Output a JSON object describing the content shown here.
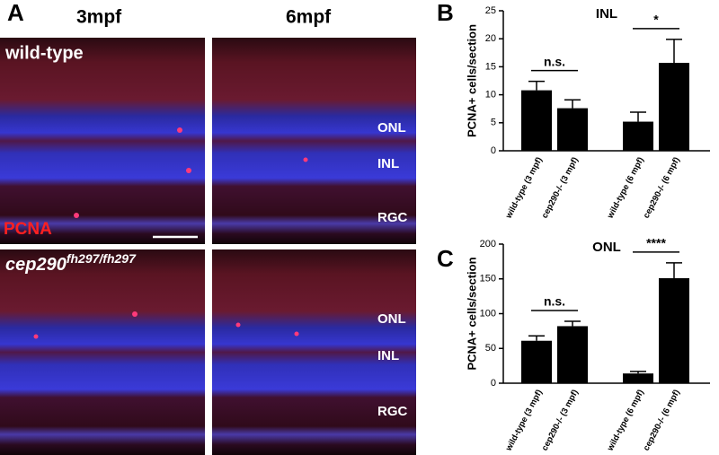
{
  "panels": {
    "a": "A",
    "b": "B",
    "c": "C"
  },
  "micrographs": {
    "columns": [
      "3mpf",
      "6mpf"
    ],
    "rows": [
      "wild-type",
      {
        "gene": "cep290",
        "allele": "fh297/fh297"
      }
    ],
    "stain": "PCNA",
    "layers": [
      "ONL",
      "INL",
      "RGC"
    ]
  },
  "chart_data": [
    {
      "type": "bar",
      "title": "INL",
      "ylabel": "PCNA+ cells/section",
      "categories": [
        "wild-type (3 mpf)",
        "cep290-/- (3 mpf)",
        "wild-type (6 mpf)",
        "cep290-/- (6 mpf)"
      ],
      "values": [
        10.8,
        7.6,
        5.2,
        15.7
      ],
      "errors": [
        1.6,
        1.5,
        1.7,
        4.2
      ],
      "color": "#000000",
      "ylim": [
        0,
        25
      ],
      "yticks": [
        0,
        5,
        10,
        15,
        20,
        25
      ],
      "annotations": [
        "n.s.",
        "*"
      ]
    },
    {
      "type": "bar",
      "title": "ONL",
      "ylabel": "PCNA+ cells/section",
      "categories": [
        "wild-type (3 mpf)",
        "cep290-/- (3 mpf)",
        "wild-type (6 mpf)",
        "cep290-/- (6 mpf)"
      ],
      "values": [
        61,
        82,
        14,
        151
      ],
      "errors": [
        7,
        7,
        3,
        22
      ],
      "color": "#000000",
      "ylim": [
        0,
        200
      ],
      "yticks": [
        0,
        50,
        100,
        150,
        200
      ],
      "annotations": [
        "n.s.",
        "****"
      ]
    }
  ]
}
